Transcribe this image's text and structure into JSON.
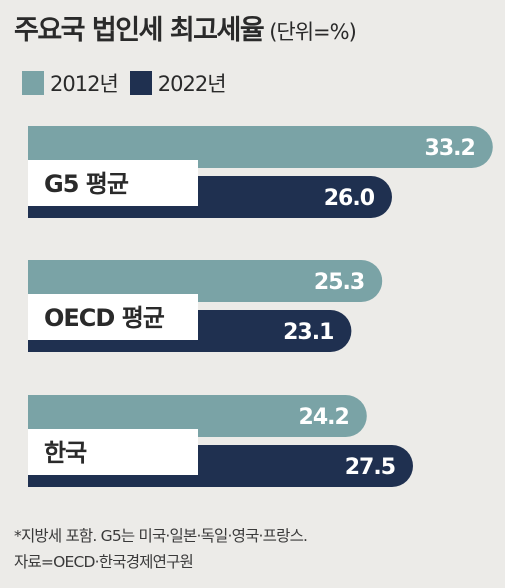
{
  "header": {
    "title": "주요국 법인세 최고세율",
    "unit": "(단위=%)"
  },
  "legend": [
    {
      "label": "2012년",
      "color": "#7aa3a6"
    },
    {
      "label": "2022년",
      "color": "#1f3050"
    }
  ],
  "chart_data": {
    "type": "bar",
    "orientation": "horizontal",
    "categories": [
      "G5 평균",
      "OECD 평균",
      "한국"
    ],
    "series": [
      {
        "name": "2012년",
        "values": [
          33.2,
          25.3,
          24.2
        ],
        "color": "#7aa3a6"
      },
      {
        "name": "2022년",
        "values": [
          26.0,
          23.1,
          27.5
        ],
        "color": "#1f3050"
      }
    ],
    "title": "주요국 법인세 최고세율",
    "xlabel": "",
    "ylabel": "",
    "grid": false,
    "legend_position": "top-left"
  },
  "footnote": {
    "line1": "*지방세 포함. G5는 미국·일본·독일·영국·프랑스.",
    "line2": "자료=OECD·한국경제연구원"
  }
}
